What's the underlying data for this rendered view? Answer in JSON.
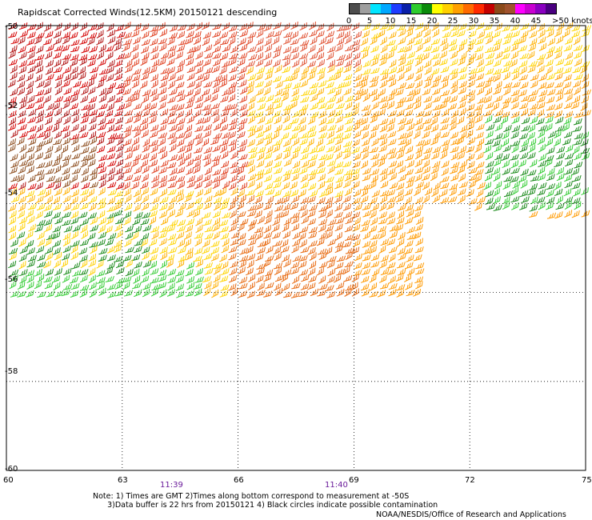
{
  "title": "Rapidscat Corrected Winds(12.5KM) 20150121 descending",
  "legend": {
    "colors": [
      "#4d4d4d",
      "#9e9e9e",
      "#00e5ff",
      "#00a8ff",
      "#1e3cff",
      "#0a1fa8",
      "#2ecc2e",
      "#0a8a0a",
      "#ffff00",
      "#ffd000",
      "#ffa000",
      "#ff6a00",
      "#ff2a00",
      "#c40000",
      "#8b4a1a",
      "#a0522d",
      "#ff00ff",
      "#c800d0",
      "#8a00c0",
      "#4a0080"
    ],
    "labels": [
      "0",
      "5",
      "10",
      "15",
      "20",
      "25",
      "30",
      "35",
      "40",
      "45"
    ],
    "unit": ">50 knots"
  },
  "axes": {
    "lat_labels": [
      "-50",
      "-52",
      "-54",
      "-56",
      "-58",
      "-60"
    ],
    "lon_labels": [
      "60",
      "63",
      "66",
      "69",
      "72",
      "75"
    ]
  },
  "times": [
    "11:39",
    "11:40"
  ],
  "notes": {
    "line1": "Note: 1) Times are GMT 2)Times along bottom correspond to measurement at -50S",
    "line2": "      3)Data buffer is 22 hrs from 20150121 4) Black circles indicate possible contamination"
  },
  "credit": "NOAA/NESDIS/Office of Research and Applications",
  "chart_data": {
    "type": "heatmap",
    "lon_range": [
      60,
      75
    ],
    "lat_range": [
      -60,
      -50
    ],
    "legend_categories": [
      "0",
      "5",
      "10",
      "15",
      "20",
      "25",
      "30",
      "35",
      "40",
      "45",
      ">50 knots"
    ],
    "time_labels": [
      {
        "lon": 63,
        "time": "11:39"
      },
      {
        "lon": 69,
        "time": "11:40"
      }
    ]
  }
}
